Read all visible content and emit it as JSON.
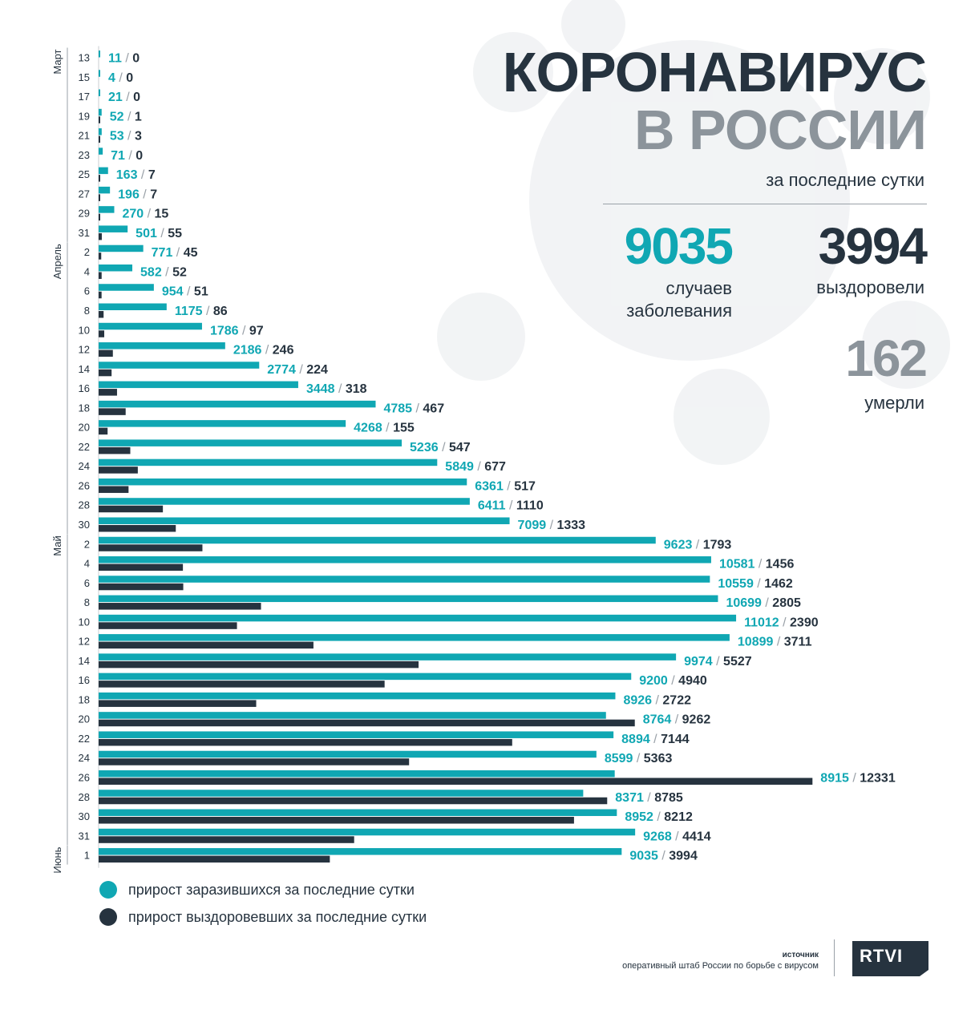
{
  "header": {
    "title_line1": "КОРОНАВИРУС",
    "title_line2": "В РОССИИ",
    "subtitle": "за последние сутки"
  },
  "summary": {
    "cases": "9035",
    "cases_label_1": "случаев",
    "cases_label_2": "заболевания",
    "recovered": "3994",
    "recovered_label": "выздоровели",
    "deaths": "162",
    "deaths_label": "умерли"
  },
  "legend": {
    "cases": "прирост заразившихся за последние сутки",
    "recovered": "прирост выздоровевших за последние сутки"
  },
  "source": {
    "title": "источник",
    "text": "оперативный штаб России по борьбе с вирусом"
  },
  "logo": {
    "text": "RTVI"
  },
  "colors": {
    "cases": "#10a7b3",
    "recovered": "#26333f",
    "accent_gray": "#8c949b"
  },
  "chart_data": {
    "type": "bar",
    "orientation": "horizontal",
    "months": [
      {
        "label": "Март",
        "count": 10
      },
      {
        "label": "Апрель",
        "count": 15
      },
      {
        "label": "Май",
        "count": 16
      },
      {
        "label": "Июнь",
        "count": 1
      }
    ],
    "categories": [
      "13",
      "15",
      "17",
      "19",
      "21",
      "23",
      "25",
      "27",
      "29",
      "31",
      "2",
      "4",
      "6",
      "8",
      "10",
      "12",
      "14",
      "16",
      "18",
      "20",
      "22",
      "24",
      "26",
      "28",
      "30",
      "2",
      "4",
      "6",
      "8",
      "10",
      "12",
      "14",
      "16",
      "18",
      "20",
      "22",
      "24",
      "26",
      "28",
      "30",
      "31",
      "1"
    ],
    "series": [
      {
        "name": "прирост заразившихся за последние сутки",
        "values": [
          11,
          4,
          21,
          52,
          53,
          71,
          163,
          196,
          270,
          501,
          771,
          582,
          954,
          1175,
          1786,
          2186,
          2774,
          3448,
          4785,
          4268,
          5236,
          5849,
          6361,
          6411,
          7099,
          9623,
          10581,
          10559,
          10699,
          11012,
          10899,
          9974,
          9200,
          8926,
          8764,
          8894,
          8599,
          8915,
          8371,
          8952,
          9268,
          9035
        ]
      },
      {
        "name": "прирост выздоровевших за последние сутки",
        "values": [
          0,
          0,
          0,
          1,
          3,
          0,
          7,
          7,
          15,
          55,
          45,
          52,
          51,
          86,
          97,
          246,
          224,
          318,
          467,
          155,
          547,
          677,
          517,
          1110,
          1333,
          1793,
          1456,
          1462,
          2805,
          2390,
          3711,
          5527,
          4940,
          2722,
          9262,
          7144,
          5363,
          12331,
          8785,
          8212,
          4414,
          3994
        ]
      }
    ],
    "legend": "bottom-left",
    "grid": false
  }
}
